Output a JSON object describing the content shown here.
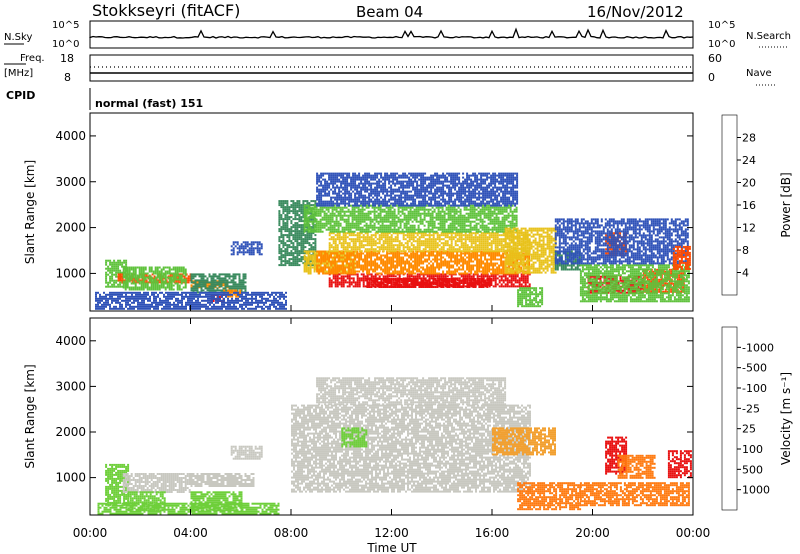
{
  "header": {
    "station": "Stokkseyri (fitACF)",
    "beam": "Beam 04",
    "date": "16/Nov/2012"
  },
  "top_panels": {
    "nsky_label": "N.Sky",
    "nsearch_label": "N.Search",
    "nsky_ticks": [
      "10^5",
      "10^0"
    ],
    "nsearch_ticks": [
      "10^5",
      "10^0"
    ],
    "freq_label": "Freq.",
    "freq_unit": "[MHz]",
    "freq_ticks": [
      "18",
      "8"
    ],
    "nave_label": "Nave",
    "nave_ticks": [
      "60",
      "0"
    ],
    "cpid_label": "CPID",
    "cpid_value": "normal (fast) 151"
  },
  "x_axis": {
    "title": "Time UT",
    "ticks": [
      "00:00",
      "04:00",
      "08:00",
      "12:00",
      "16:00",
      "20:00",
      "00:00"
    ]
  },
  "chart_data": [
    {
      "type": "heatmap",
      "name": "power",
      "ylabel": "Slant Range [km]",
      "yticks": [
        1000,
        2000,
        3000,
        4000
      ],
      "ylim": [
        180,
        4500
      ],
      "xlim_hours": [
        0,
        24
      ],
      "colorbar": {
        "title": "Power [dB]",
        "ticks": [
          "4",
          "8",
          "12",
          "16",
          "20",
          "24",
          "28"
        ],
        "colors": [
          "#0a1cf0",
          "#2f52b8",
          "#3a8a5e",
          "#5fc23c",
          "#e8c21c",
          "#ff8a00",
          "#ff4a00",
          "#e81010"
        ]
      },
      "regions": [
        {
          "t0": 0.6,
          "t1": 1.4,
          "r0": 700,
          "r1": 1300,
          "level": 3
        },
        {
          "t0": 1.1,
          "t1": 4.0,
          "r0": 800,
          "r1": 1000,
          "level": 6
        },
        {
          "t0": 1.3,
          "t1": 3.8,
          "r0": 650,
          "r1": 1150,
          "level": 3
        },
        {
          "t0": 4.0,
          "t1": 5.5,
          "r0": 700,
          "r1": 850,
          "level": 5
        },
        {
          "t0": 4.0,
          "t1": 6.2,
          "r0": 600,
          "r1": 1000,
          "level": 2
        },
        {
          "t0": 4.8,
          "t1": 5.3,
          "r0": 400,
          "r1": 550,
          "level": 7
        },
        {
          "t0": 5.3,
          "t1": 6.0,
          "r0": 500,
          "r1": 650,
          "level": 5
        },
        {
          "t0": 0.2,
          "t1": 7.8,
          "r0": 220,
          "r1": 600,
          "level": 1
        },
        {
          "t0": 5.6,
          "t1": 6.8,
          "r0": 1400,
          "r1": 1700,
          "level": 1
        },
        {
          "t0": 7.5,
          "t1": 9.0,
          "r0": 1200,
          "r1": 2600,
          "level": 2
        },
        {
          "t0": 8.5,
          "t1": 10.5,
          "r0": 1000,
          "r1": 1500,
          "level": 4
        },
        {
          "t0": 9.5,
          "t1": 17.5,
          "r0": 700,
          "r1": 1000,
          "level": 7
        },
        {
          "t0": 11.0,
          "t1": 16.0,
          "r0": 700,
          "r1": 900,
          "level": 8
        },
        {
          "t0": 9.0,
          "t1": 17.5,
          "r0": 1000,
          "r1": 1500,
          "level": 5
        },
        {
          "t0": 9.5,
          "t1": 17.5,
          "r0": 1500,
          "r1": 1900,
          "level": 4
        },
        {
          "t0": 8.5,
          "t1": 17.0,
          "r0": 1900,
          "r1": 2500,
          "level": 3
        },
        {
          "t0": 9.0,
          "t1": 17.0,
          "r0": 2500,
          "r1": 3200,
          "level": 1
        },
        {
          "t0": 16.5,
          "t1": 18.5,
          "r0": 1000,
          "r1": 2000,
          "level": 4
        },
        {
          "t0": 17.0,
          "t1": 18.0,
          "r0": 300,
          "r1": 700,
          "level": 3
        },
        {
          "t0": 18.5,
          "t1": 19.5,
          "r0": 1100,
          "r1": 1500,
          "level": 2
        },
        {
          "t0": 19.8,
          "t1": 22.0,
          "r0": 600,
          "r1": 950,
          "level": 7
        },
        {
          "t0": 22.0,
          "t1": 23.6,
          "r0": 600,
          "r1": 1100,
          "level": 6
        },
        {
          "t0": 19.5,
          "t1": 23.8,
          "r0": 400,
          "r1": 1200,
          "level": 3
        },
        {
          "t0": 20.5,
          "t1": 21.3,
          "r0": 1400,
          "r1": 1900,
          "level": 6
        },
        {
          "t0": 18.5,
          "t1": 23.8,
          "r0": 1200,
          "r1": 2200,
          "level": 1
        },
        {
          "t0": 23.2,
          "t1": 23.9,
          "r0": 1100,
          "r1": 1600,
          "level": 6
        }
      ]
    },
    {
      "type": "heatmap",
      "name": "velocity",
      "ylabel": "Slant Range [km]",
      "yticks": [
        1000,
        2000,
        3000,
        4000
      ],
      "ylim": [
        180,
        4500
      ],
      "xlim_hours": [
        0,
        24
      ],
      "colorbar": {
        "title": "Velocity [m s⁻¹]",
        "ticks": [
          "1000",
          "500",
          "100",
          "25",
          "-25",
          "-100",
          "-500",
          "-1000"
        ],
        "colors": [
          "#1040d8",
          "#3a7ab8",
          "#40a850",
          "#6ecf3a",
          "#c8c8c0",
          "#f2a030",
          "#ff7a10",
          "#ff4a00",
          "#e81010"
        ]
      },
      "regions": [
        {
          "t0": 0.6,
          "t1": 1.5,
          "r0": 400,
          "r1": 1300,
          "level": 3
        },
        {
          "t0": 1.3,
          "t1": 4.0,
          "r0": 700,
          "r1": 1100,
          "level": 4
        },
        {
          "t0": 1.5,
          "t1": 3.0,
          "r0": 300,
          "r1": 700,
          "level": 3
        },
        {
          "t0": 4.0,
          "t1": 6.0,
          "r0": 300,
          "r1": 700,
          "level": 3
        },
        {
          "t0": 4.0,
          "t1": 6.5,
          "r0": 800,
          "r1": 1100,
          "level": 4
        },
        {
          "t0": 5.6,
          "t1": 6.8,
          "r0": 1400,
          "r1": 1700,
          "level": 4
        },
        {
          "t0": 8.0,
          "t1": 17.5,
          "r0": 700,
          "r1": 2600,
          "level": 4
        },
        {
          "t0": 9.0,
          "t1": 16.5,
          "r0": 2600,
          "r1": 3200,
          "level": 4
        },
        {
          "t0": 10.0,
          "t1": 11.0,
          "r0": 1700,
          "r1": 2100,
          "level": 3
        },
        {
          "t0": 16.0,
          "t1": 18.5,
          "r0": 1500,
          "r1": 2100,
          "level": 5
        },
        {
          "t0": 17.0,
          "t1": 19.5,
          "r0": 300,
          "r1": 900,
          "level": 6
        },
        {
          "t0": 19.5,
          "t1": 23.8,
          "r0": 400,
          "r1": 900,
          "level": 6
        },
        {
          "t0": 20.5,
          "t1": 21.3,
          "r0": 1100,
          "r1": 1900,
          "level": 8
        },
        {
          "t0": 21.0,
          "t1": 22.5,
          "r0": 1000,
          "r1": 1500,
          "level": 6
        },
        {
          "t0": 23.0,
          "t1": 23.9,
          "r0": 1000,
          "r1": 1600,
          "level": 8
        },
        {
          "t0": 0.3,
          "t1": 7.5,
          "r0": 220,
          "r1": 450,
          "level": 3
        }
      ]
    }
  ]
}
